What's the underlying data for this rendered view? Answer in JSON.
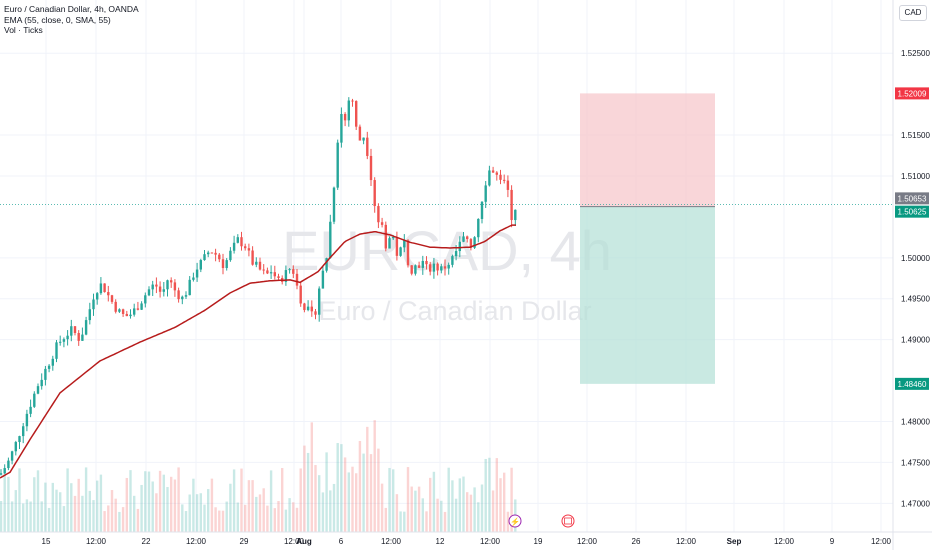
{
  "legend": {
    "symbol": "Euro / Canadian Dollar, 4h, OANDA",
    "ema": "EMA (55, close, 0, SMA, 55)",
    "volume": "Vol · Ticks"
  },
  "currency": "CAD",
  "watermark": {
    "ticker": "EURCAD, 4h",
    "description": "Euro / Canadian Dollar"
  },
  "colors": {
    "up": "#26a69a",
    "down": "#ef5350",
    "ema": "#b71c1c",
    "stop_zone": "#f7c5c9",
    "target_zone": "#b2dfd5",
    "stop_label": "#f23645",
    "target_label": "#089981",
    "price_label": "#787b86"
  },
  "chart_data": {
    "type": "candlestick",
    "y_axis": {
      "min": 1.4665,
      "max": 1.5315,
      "ticks": [
        "1.52500",
        "1.52009",
        "1.51500",
        "1.51000",
        "1.50653",
        "1.50625",
        "1.50000",
        "1.49500",
        "1.49000",
        "1.48460",
        "1.48000",
        "1.47500",
        "1.47000"
      ]
    },
    "x_axis": {
      "ticks": [
        "15",
        "12:00",
        "22",
        "12:00",
        "29",
        "12:00",
        "Aug",
        "6",
        "12:00",
        "12",
        "12:00",
        "19",
        "12:00",
        "26",
        "12:00",
        "Sep",
        "12:00",
        "9",
        "12:00"
      ]
    },
    "position": {
      "stop": 1.52009,
      "entry": 1.50625,
      "target": 1.4846,
      "stop_label": "1.52009",
      "entry_label": "1.50625",
      "target_label": "1.48460"
    },
    "last_price": 1.50653,
    "last_price_label": "1.50653",
    "ema_key_points": [
      [
        0,
        1.4731
      ],
      [
        10,
        1.4738
      ],
      [
        30,
        1.4778
      ],
      [
        60,
        1.4835
      ],
      [
        100,
        1.4874
      ],
      [
        140,
        1.4897
      ],
      [
        175,
        1.4915
      ],
      [
        205,
        1.4936
      ],
      [
        230,
        1.4957
      ],
      [
        250,
        1.4969
      ],
      [
        270,
        1.4972
      ],
      [
        290,
        1.4973
      ],
      [
        300,
        1.497
      ],
      [
        318,
        1.4983
      ],
      [
        330,
        1.5
      ],
      [
        345,
        1.502
      ],
      [
        360,
        1.5029
      ],
      [
        375,
        1.5032
      ],
      [
        390,
        1.5028
      ],
      [
        410,
        1.5019
      ],
      [
        430,
        1.5013
      ],
      [
        450,
        1.5012
      ],
      [
        470,
        1.5013
      ],
      [
        485,
        1.502
      ],
      [
        500,
        1.5033
      ],
      [
        512,
        1.504
      ],
      [
        516,
        1.504
      ]
    ],
    "price_key_points": [
      [
        0,
        1.4735
      ],
      [
        8,
        1.475
      ],
      [
        15,
        1.477
      ],
      [
        22,
        1.4795
      ],
      [
        30,
        1.482
      ],
      [
        38,
        1.4845
      ],
      [
        45,
        1.4862
      ],
      [
        52,
        1.488
      ],
      [
        58,
        1.4895
      ],
      [
        65,
        1.4905
      ],
      [
        72,
        1.4912
      ],
      [
        80,
        1.49
      ],
      [
        88,
        1.493
      ],
      [
        95,
        1.496
      ],
      [
        102,
        1.4968
      ],
      [
        110,
        1.495
      ],
      [
        118,
        1.4935
      ],
      [
        125,
        1.4928
      ],
      [
        132,
        1.4932
      ],
      [
        140,
        1.4945
      ],
      [
        148,
        1.496
      ],
      [
        155,
        1.4968
      ],
      [
        162,
        1.4955
      ],
      [
        168,
        1.4975
      ],
      [
        175,
        1.496
      ],
      [
        182,
        1.495
      ],
      [
        188,
        1.4962
      ],
      [
        195,
        1.4985
      ],
      [
        202,
        1.4995
      ],
      [
        210,
        1.501
      ],
      [
        218,
        1.5002
      ],
      [
        224,
        1.499
      ],
      [
        230,
        1.5005
      ],
      [
        238,
        1.5022
      ],
      [
        245,
        1.5015
      ],
      [
        252,
        1.4995
      ],
      [
        260,
        1.4985
      ],
      [
        266,
        1.4978
      ],
      [
        272,
        1.4985
      ],
      [
        278,
        1.497
      ],
      [
        285,
        1.498
      ],
      [
        292,
        1.499
      ],
      [
        297,
        1.4965
      ],
      [
        302,
        1.4945
      ],
      [
        308,
        1.4935
      ],
      [
        314,
        1.4925
      ],
      [
        320,
        1.497
      ],
      [
        326,
        1.4995
      ],
      [
        330,
        1.504
      ],
      [
        334,
        1.509
      ],
      [
        338,
        1.515
      ],
      [
        342,
        1.518
      ],
      [
        346,
        1.5165
      ],
      [
        350,
        1.5205
      ],
      [
        354,
        1.5185
      ],
      [
        358,
        1.5135
      ],
      [
        362,
        1.5155
      ],
      [
        366,
        1.514
      ],
      [
        370,
        1.511
      ],
      [
        374,
        1.507
      ],
      [
        378,
        1.5045
      ],
      [
        382,
        1.504
      ],
      [
        386,
        1.5015
      ],
      [
        392,
        1.503
      ],
      [
        398,
        1.5
      ],
      [
        404,
        1.502
      ],
      [
        410,
        1.4985
      ],
      [
        416,
        1.499
      ],
      [
        422,
        1.4995
      ],
      [
        428,
        1.4985
      ],
      [
        434,
        1.4992
      ],
      [
        440,
        1.4985
      ],
      [
        446,
        1.499
      ],
      [
        452,
        1.4998
      ],
      [
        458,
        1.5012
      ],
      [
        464,
        1.5025
      ],
      [
        470,
        1.501
      ],
      [
        476,
        1.5035
      ],
      [
        480,
        1.506
      ],
      [
        484,
        1.5085
      ],
      [
        488,
        1.5105
      ],
      [
        492,
        1.511
      ],
      [
        496,
        1.51
      ],
      [
        500,
        1.5098
      ],
      [
        504,
        1.509
      ],
      [
        508,
        1.508
      ],
      [
        511,
        1.505
      ],
      [
        514,
        1.5055
      ],
      [
        516,
        1.5065
      ]
    ]
  }
}
